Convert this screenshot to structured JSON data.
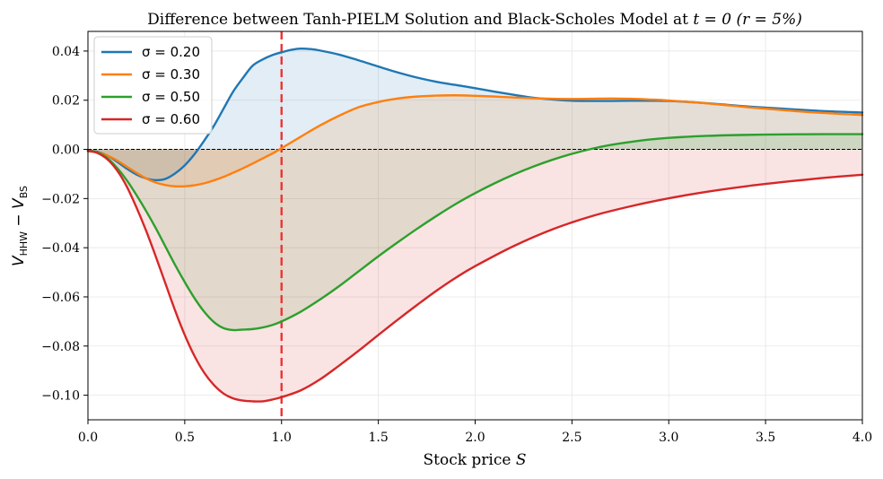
{
  "chart_data": {
    "type": "line",
    "title": "Difference between Tanh-PIELM Solution and Black-Scholes Model at t = 0 (r = 5%)",
    "title_parts": {
      "prefix": "Difference between Tanh-PIELM Solution and Black-Scholes Model at ",
      "t_expr": "t = 0",
      "r_expr": "(r = 5%)"
    },
    "xlabel": "Stock price S",
    "xlabel_parts": {
      "text": "Stock price ",
      "var": "S"
    },
    "ylabel": "V_HHW − V_BS",
    "xlim": [
      0.0,
      4.0
    ],
    "ylim": [
      -0.11,
      0.048
    ],
    "x_ticks": [
      0.0,
      0.5,
      1.0,
      1.5,
      2.0,
      2.5,
      3.0,
      3.5,
      4.0
    ],
    "x_tick_labels": [
      "0.0",
      "0.5",
      "1.0",
      "1.5",
      "2.0",
      "2.5",
      "3.0",
      "3.5",
      "4.0"
    ],
    "y_ticks": [
      0.04,
      0.02,
      0.0,
      -0.02,
      -0.04,
      -0.06,
      -0.08,
      -0.1
    ],
    "y_tick_labels": [
      "0.04",
      "0.02",
      "0.00",
      "−0.02",
      "−0.04",
      "−0.06",
      "−0.08",
      "−0.10"
    ],
    "grid": true,
    "legend_position": "upper-left",
    "reference_lines": {
      "strike_vertical": {
        "x": 1.0,
        "color": "#ee3333",
        "style": "dashed"
      },
      "zero_horizontal": {
        "y": 0.0,
        "color": "#000000",
        "style": "dashed"
      }
    },
    "fill_between_zero": true,
    "series": [
      {
        "name": "σ = 0.20",
        "legend_label": "σ = 0.20",
        "color": "#1f77b4",
        "x": [
          0,
          0.05,
          0.1,
          0.15,
          0.2,
          0.25,
          0.3,
          0.35,
          0.4,
          0.45,
          0.5,
          0.55,
          0.6,
          0.65,
          0.7,
          0.75,
          0.8,
          0.85,
          0.9,
          0.95,
          1.0,
          1.05,
          1.1,
          1.15,
          1.2,
          1.3,
          1.4,
          1.5,
          1.6,
          1.7,
          1.8,
          1.9,
          2.0,
          2.1,
          2.2,
          2.3,
          2.4,
          2.5,
          2.6,
          2.7,
          2.8,
          2.9,
          3.0,
          3.2,
          3.4,
          3.6,
          3.8,
          4.0
        ],
        "y": [
          -0.0005,
          -0.001,
          -0.0025,
          -0.005,
          -0.0078,
          -0.0102,
          -0.0118,
          -0.0125,
          -0.012,
          -0.0098,
          -0.0065,
          -0.002,
          0.0035,
          0.0095,
          0.0165,
          0.0235,
          0.029,
          0.034,
          0.0365,
          0.0383,
          0.0395,
          0.0405,
          0.041,
          0.0408,
          0.0402,
          0.0385,
          0.0362,
          0.0337,
          0.0313,
          0.0292,
          0.0275,
          0.0262,
          0.0249,
          0.0235,
          0.0222,
          0.021,
          0.0203,
          0.0198,
          0.0197,
          0.0197,
          0.0198,
          0.0198,
          0.0197,
          0.0188,
          0.0175,
          0.0165,
          0.0156,
          0.015
        ]
      },
      {
        "name": "σ = 0.30",
        "legend_label": "σ = 0.30",
        "color": "#ff7f0e",
        "x": [
          0,
          0.05,
          0.1,
          0.15,
          0.2,
          0.25,
          0.3,
          0.35,
          0.4,
          0.45,
          0.5,
          0.55,
          0.6,
          0.65,
          0.7,
          0.75,
          0.8,
          0.85,
          0.9,
          0.95,
          1.0,
          1.1,
          1.2,
          1.3,
          1.4,
          1.5,
          1.6,
          1.7,
          1.8,
          1.9,
          2.0,
          2.1,
          2.2,
          2.3,
          2.4,
          2.5,
          2.6,
          2.7,
          2.8,
          2.9,
          3.0,
          3.2,
          3.4,
          3.6,
          3.8,
          4.0
        ],
        "y": [
          -0.0008,
          -0.0012,
          -0.0025,
          -0.0045,
          -0.007,
          -0.0095,
          -0.0118,
          -0.0135,
          -0.0145,
          -0.015,
          -0.015,
          -0.0146,
          -0.0138,
          -0.0126,
          -0.0112,
          -0.0095,
          -0.0077,
          -0.0058,
          -0.0038,
          -0.0018,
          0.0005,
          0.0052,
          0.0098,
          0.0138,
          0.0172,
          0.0193,
          0.0207,
          0.0215,
          0.0219,
          0.022,
          0.0218,
          0.0215,
          0.0211,
          0.0208,
          0.0206,
          0.0205,
          0.0206,
          0.0207,
          0.0206,
          0.0203,
          0.0199,
          0.0187,
          0.0172,
          0.0159,
          0.0148,
          0.014
        ]
      },
      {
        "name": "σ = 0.50",
        "legend_label": "σ = 0.50",
        "color": "#2ca02c",
        "x": [
          0,
          0.05,
          0.1,
          0.15,
          0.2,
          0.25,
          0.3,
          0.35,
          0.4,
          0.45,
          0.5,
          0.55,
          0.6,
          0.65,
          0.7,
          0.75,
          0.8,
          0.85,
          0.9,
          0.95,
          1.0,
          1.1,
          1.2,
          1.3,
          1.4,
          1.5,
          1.6,
          1.7,
          1.8,
          1.9,
          2.0,
          2.1,
          2.2,
          2.3,
          2.4,
          2.5,
          2.6,
          2.7,
          2.8,
          2.9,
          3.0,
          3.2,
          3.4,
          3.6,
          3.8,
          4.0
        ],
        "y": [
          -0.0005,
          -0.0012,
          -0.0035,
          -0.0075,
          -0.0125,
          -0.0185,
          -0.025,
          -0.032,
          -0.0395,
          -0.047,
          -0.054,
          -0.0605,
          -0.066,
          -0.0702,
          -0.0727,
          -0.0735,
          -0.0733,
          -0.0731,
          -0.0725,
          -0.0715,
          -0.07,
          -0.066,
          -0.061,
          -0.0555,
          -0.0495,
          -0.0435,
          -0.0378,
          -0.0323,
          -0.0271,
          -0.0222,
          -0.0178,
          -0.0138,
          -0.0102,
          -0.007,
          -0.0042,
          -0.0018,
          0.0002,
          0.0018,
          0.003,
          0.004,
          0.0047,
          0.0055,
          0.0059,
          0.0061,
          0.0062,
          0.0062
        ]
      },
      {
        "name": "σ = 0.60",
        "legend_label": "σ = 0.60",
        "color": "#d62728",
        "x": [
          0,
          0.05,
          0.1,
          0.15,
          0.2,
          0.25,
          0.3,
          0.35,
          0.4,
          0.45,
          0.5,
          0.55,
          0.6,
          0.65,
          0.7,
          0.75,
          0.8,
          0.85,
          0.9,
          0.95,
          1.0,
          1.1,
          1.2,
          1.3,
          1.4,
          1.5,
          1.6,
          1.7,
          1.8,
          1.9,
          2.0,
          2.2,
          2.4,
          2.6,
          2.8,
          3.0,
          3.2,
          3.4,
          3.6,
          3.8,
          4.0
        ],
        "y": [
          -0.0005,
          -0.0015,
          -0.004,
          -0.0085,
          -0.015,
          -0.0235,
          -0.033,
          -0.0435,
          -0.0545,
          -0.0655,
          -0.0755,
          -0.084,
          -0.0908,
          -0.0958,
          -0.0993,
          -0.1013,
          -0.1022,
          -0.1025,
          -0.1025,
          -0.1018,
          -0.1008,
          -0.098,
          -0.0935,
          -0.0878,
          -0.0818,
          -0.0755,
          -0.0693,
          -0.0633,
          -0.0575,
          -0.0522,
          -0.0475,
          -0.0393,
          -0.0325,
          -0.0272,
          -0.0232,
          -0.0199,
          -0.0172,
          -0.015,
          -0.0132,
          -0.0116,
          -0.0103
        ]
      }
    ]
  }
}
